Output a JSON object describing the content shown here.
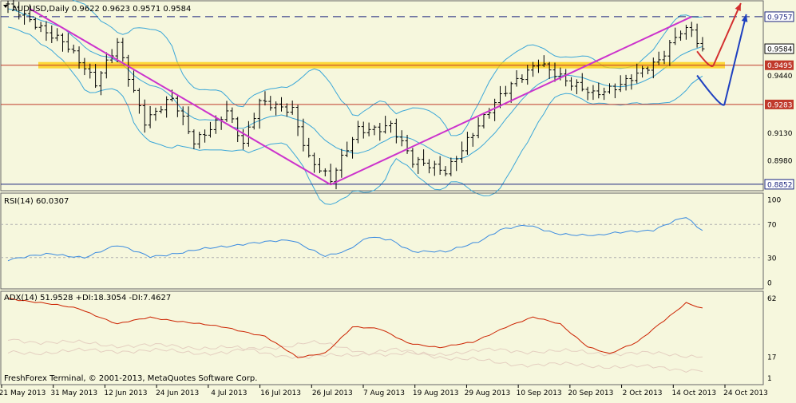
{
  "chart_data": {
    "type": "line",
    "symbol": "AUDUSD",
    "timeframe": "Daily",
    "header_text": "AUDUSD,Daily  0.9622 0.9623 0.9571 0.9584",
    "last_bar": {
      "open": 0.9622,
      "high": 0.9623,
      "low": 0.9571,
      "close": 0.9584
    },
    "date_labels": [
      "21 May 2013",
      "31 May 2013",
      "12 Jun 2013",
      "24 Jun 2013",
      "4 Jul 2013",
      "16 Jul 2013",
      "26 Jul 2013",
      "7 Aug 2013",
      "19 Aug 2013",
      "29 Aug 2013",
      "10 Sep 2013",
      "20 Sep 2013",
      "2 Oct 2013",
      "14 Oct 2013",
      "24 Oct 2013"
    ],
    "price_axis": {
      "range": [
        0.883,
        0.983
      ],
      "tick_labels": [
        "0.9440",
        "0.9130",
        "0.8980"
      ],
      "level_labels": [
        {
          "value": "0.9757",
          "style": "dashed-navy"
        },
        {
          "value": "0.9584",
          "style": "current-price"
        },
        {
          "value": "0.9495",
          "style": "red"
        },
        {
          "value": "0.9283",
          "style": "red"
        },
        {
          "value": "0.8852",
          "style": "navy"
        }
      ]
    },
    "horizontal_levels": [
      {
        "value": 0.9757,
        "color": "#1a237e",
        "dashed": true
      },
      {
        "value": 0.9495,
        "color": "#ffb300",
        "band": true
      },
      {
        "value": 0.9283,
        "color": "#c0392b"
      },
      {
        "value": 0.8852,
        "color": "#1a237e"
      }
    ],
    "trendlines": [
      {
        "color": "#cc33cc",
        "from": {
          "bar": 4,
          "price": 0.98
        },
        "to": {
          "bar": 59,
          "price": 0.885
        }
      },
      {
        "color": "#cc33cc",
        "from": {
          "bar": 59,
          "price": 0.885
        },
        "to": {
          "bar": 125,
          "price": 0.9757
        }
      }
    ],
    "forecast_arrows": [
      {
        "color": "#d32f2f",
        "scenario": "up",
        "points": [
          {
            "bar": 126,
            "price": 0.957
          },
          {
            "bar": 129,
            "price": 0.9495
          },
          {
            "bar": 134,
            "price": 0.983
          }
        ]
      },
      {
        "color": "#1e40c0",
        "scenario": "down-then-up",
        "points": [
          {
            "bar": 126,
            "price": 0.944
          },
          {
            "bar": 131,
            "price": 0.9283
          },
          {
            "bar": 135,
            "price": 0.977
          }
        ]
      }
    ],
    "price_anchors": [
      {
        "bar": 0,
        "price": 0.98
      },
      {
        "bar": 10,
        "price": 0.964
      },
      {
        "bar": 16,
        "price": 0.938
      },
      {
        "bar": 20,
        "price": 0.962
      },
      {
        "bar": 25,
        "price": 0.92
      },
      {
        "bar": 30,
        "price": 0.93
      },
      {
        "bar": 34,
        "price": 0.908
      },
      {
        "bar": 40,
        "price": 0.926
      },
      {
        "bar": 43,
        "price": 0.906
      },
      {
        "bar": 46,
        "price": 0.928
      },
      {
        "bar": 52,
        "price": 0.927
      },
      {
        "bar": 55,
        "price": 0.9
      },
      {
        "bar": 59,
        "price": 0.886
      },
      {
        "bar": 64,
        "price": 0.915
      },
      {
        "bar": 70,
        "price": 0.918
      },
      {
        "bar": 74,
        "price": 0.896
      },
      {
        "bar": 80,
        "price": 0.893
      },
      {
        "bar": 84,
        "price": 0.91
      },
      {
        "bar": 92,
        "price": 0.938
      },
      {
        "bar": 97,
        "price": 0.953
      },
      {
        "bar": 103,
        "price": 0.938
      },
      {
        "bar": 107,
        "price": 0.933
      },
      {
        "bar": 114,
        "price": 0.944
      },
      {
        "bar": 119,
        "price": 0.95
      },
      {
        "bar": 123,
        "price": 0.968
      },
      {
        "bar": 125,
        "price": 0.97
      },
      {
        "bar": 127,
        "price": 0.9584
      }
    ],
    "bollinger_width": 0.018,
    "rsi": {
      "label": "RSI(14) 60.0307",
      "period": 14,
      "last_value": 60.0307,
      "axis_labels": [
        "100",
        "70",
        "30",
        "0"
      ],
      "levels": [
        70,
        30
      ],
      "anchors": [
        {
          "bar": 0,
          "value": 28
        },
        {
          "bar": 8,
          "value": 34
        },
        {
          "bar": 14,
          "value": 31
        },
        {
          "bar": 20,
          "value": 44
        },
        {
          "bar": 26,
          "value": 32
        },
        {
          "bar": 32,
          "value": 36
        },
        {
          "bar": 38,
          "value": 42
        },
        {
          "bar": 44,
          "value": 48
        },
        {
          "bar": 52,
          "value": 50
        },
        {
          "bar": 58,
          "value": 33
        },
        {
          "bar": 62,
          "value": 38
        },
        {
          "bar": 66,
          "value": 54
        },
        {
          "bar": 70,
          "value": 52
        },
        {
          "bar": 74,
          "value": 38
        },
        {
          "bar": 80,
          "value": 36
        },
        {
          "bar": 86,
          "value": 50
        },
        {
          "bar": 90,
          "value": 64
        },
        {
          "bar": 95,
          "value": 68
        },
        {
          "bar": 100,
          "value": 60
        },
        {
          "bar": 104,
          "value": 58
        },
        {
          "bar": 108,
          "value": 56
        },
        {
          "bar": 114,
          "value": 62
        },
        {
          "bar": 118,
          "value": 64
        },
        {
          "bar": 122,
          "value": 74
        },
        {
          "bar": 124,
          "value": 78
        },
        {
          "bar": 126,
          "value": 66
        },
        {
          "bar": 128,
          "value": 60
        }
      ]
    },
    "adx": {
      "label": "ADX(14) 51.9528 +DI:18.3054 -DI:7.4627",
      "adx": 51.9528,
      "plus_di": 18.3054,
      "minus_di": 7.4627,
      "axis_labels": [
        "62",
        "17",
        "1"
      ],
      "range": [
        0,
        64
      ],
      "anchors": [
        {
          "bar": 0,
          "value": 62
        },
        {
          "bar": 6,
          "value": 58
        },
        {
          "bar": 13,
          "value": 54
        },
        {
          "bar": 20,
          "value": 42
        },
        {
          "bar": 26,
          "value": 47
        },
        {
          "bar": 32,
          "value": 44
        },
        {
          "bar": 40,
          "value": 39
        },
        {
          "bar": 47,
          "value": 33
        },
        {
          "bar": 53,
          "value": 16
        },
        {
          "bar": 58,
          "value": 20
        },
        {
          "bar": 63,
          "value": 40
        },
        {
          "bar": 68,
          "value": 38
        },
        {
          "bar": 73,
          "value": 28
        },
        {
          "bar": 79,
          "value": 24
        },
        {
          "bar": 85,
          "value": 28
        },
        {
          "bar": 91,
          "value": 40
        },
        {
          "bar": 96,
          "value": 47
        },
        {
          "bar": 101,
          "value": 42
        },
        {
          "bar": 106,
          "value": 25
        },
        {
          "bar": 110,
          "value": 19
        },
        {
          "bar": 115,
          "value": 28
        },
        {
          "bar": 119,
          "value": 42
        },
        {
          "bar": 124,
          "value": 58
        },
        {
          "bar": 128,
          "value": 52
        }
      ],
      "plus_di_anchors": [
        {
          "bar": 0,
          "value": 20
        },
        {
          "bar": 20,
          "value": 22
        },
        {
          "bar": 40,
          "value": 20
        },
        {
          "bar": 55,
          "value": 28
        },
        {
          "bar": 70,
          "value": 18
        },
        {
          "bar": 90,
          "value": 22
        },
        {
          "bar": 110,
          "value": 20
        },
        {
          "bar": 128,
          "value": 18
        }
      ],
      "minus_di_anchors": [
        {
          "bar": 0,
          "value": 30
        },
        {
          "bar": 20,
          "value": 26
        },
        {
          "bar": 40,
          "value": 24
        },
        {
          "bar": 55,
          "value": 16
        },
        {
          "bar": 70,
          "value": 22
        },
        {
          "bar": 90,
          "value": 12
        },
        {
          "bar": 110,
          "value": 10
        },
        {
          "bar": 128,
          "value": 7
        }
      ]
    },
    "colors": {
      "background": "#f6f7dd",
      "bars": "#000000",
      "bollinger": "#3ba7d8",
      "trendline": "#cc33cc",
      "rsi_line": "#3b8be0",
      "adx_line": "#cc2200",
      "di_line": "#e4cfc0",
      "level_navy": "#1a237e",
      "level_red": "#c0392b",
      "support_band": "#ffcc00"
    }
  },
  "copyright": "FreshForex Terminal, © 2001-2013, MetaQuotes Software Corp."
}
